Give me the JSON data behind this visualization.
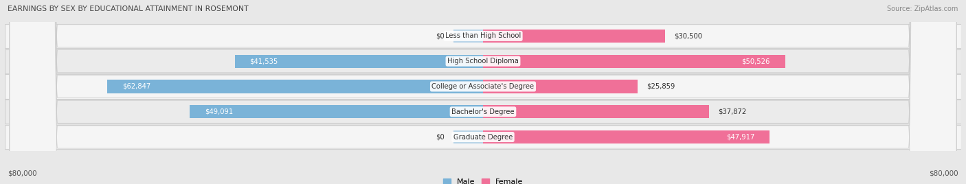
{
  "title": "EARNINGS BY SEX BY EDUCATIONAL ATTAINMENT IN ROSEMONT",
  "source": "Source: ZipAtlas.com",
  "categories": [
    "Less than High School",
    "High School Diploma",
    "College or Associate's Degree",
    "Bachelor's Degree",
    "Graduate Degree"
  ],
  "male_values": [
    0,
    41535,
    62847,
    49091,
    0
  ],
  "female_values": [
    30500,
    50526,
    25859,
    37872,
    47917
  ],
  "male_color": "#7ab3d8",
  "female_color": "#f07098",
  "male_color_light": "#b8d4e8",
  "female_color_light": "#f9bdd0",
  "bar_height": 0.52,
  "max_val": 80000,
  "bg_color": "#e8e8e8",
  "row_colors": [
    "#f5f5f5",
    "#ebebeb",
    "#f5f5f5",
    "#ebebeb",
    "#f5f5f5"
  ],
  "label_white_threshold_male": 15000,
  "label_white_threshold_female": 40000
}
